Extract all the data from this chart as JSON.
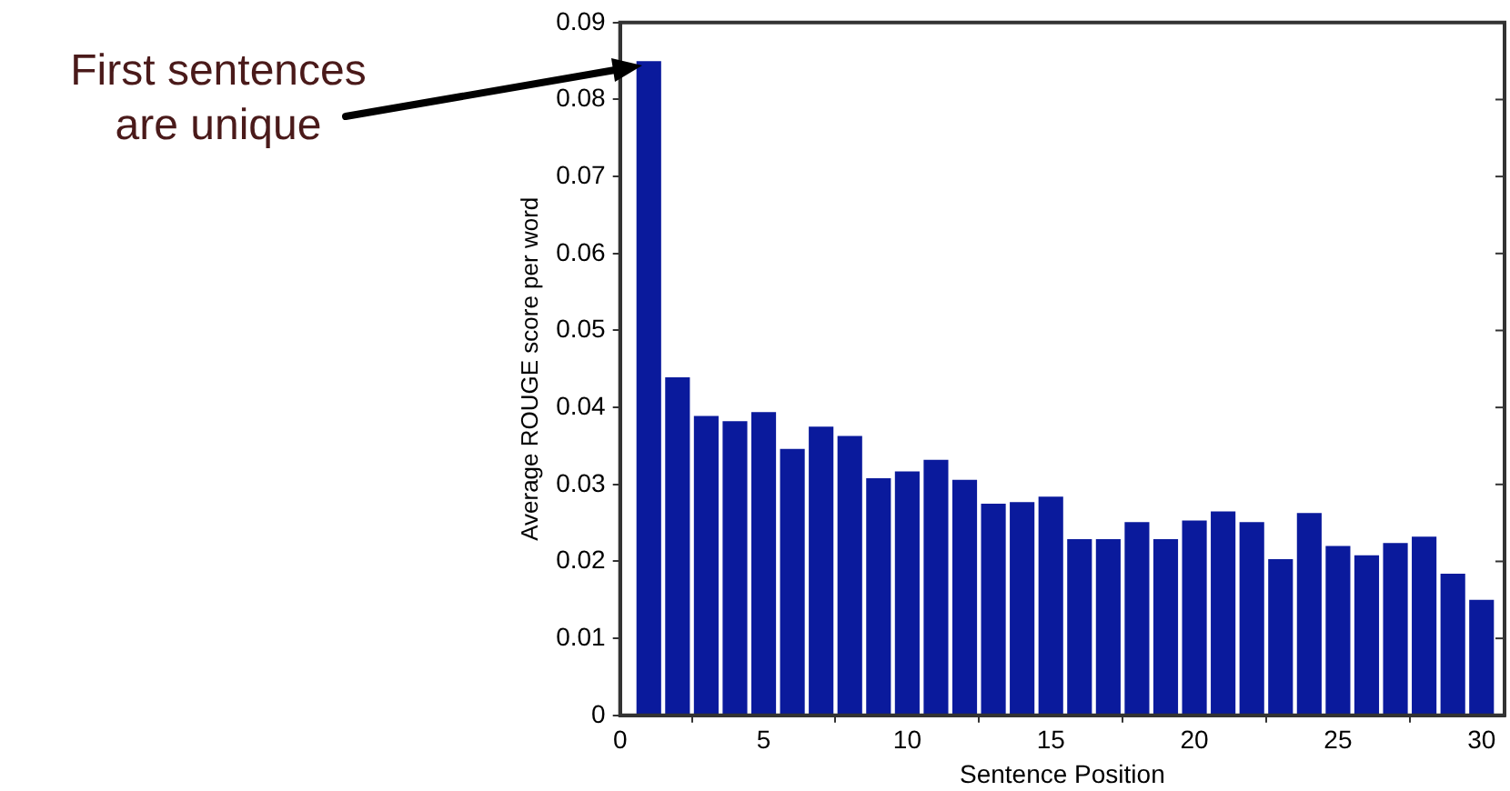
{
  "chart_data": {
    "type": "bar",
    "xlabel": "Sentence Position",
    "ylabel": "Average ROUGE score per word",
    "x": [
      1,
      2,
      3,
      4,
      5,
      6,
      7,
      8,
      9,
      10,
      11,
      12,
      13,
      14,
      15,
      16,
      17,
      18,
      19,
      20,
      21,
      22,
      23,
      24,
      25,
      26,
      27,
      28,
      29,
      30
    ],
    "values": [
      0.085,
      0.0439,
      0.0389,
      0.0382,
      0.0394,
      0.0346,
      0.0375,
      0.0363,
      0.0308,
      0.0317,
      0.0332,
      0.0306,
      0.0275,
      0.0277,
      0.0284,
      0.0229,
      0.0229,
      0.0251,
      0.0229,
      0.0253,
      0.0265,
      0.0251,
      0.0203,
      0.0263,
      0.022,
      0.0208,
      0.0224,
      0.0232,
      0.0184,
      0.015
    ],
    "color": "#0a1a9c",
    "xlim": [
      0,
      30.8
    ],
    "xticks": [
      0,
      5,
      10,
      15,
      20,
      25,
      30
    ],
    "ylim": [
      0,
      0.09
    ],
    "yticks": [
      0,
      0.01,
      0.02,
      0.03,
      0.04,
      0.05,
      0.06,
      0.07,
      0.08,
      0.09
    ],
    "grid": false,
    "legend": false,
    "annotations": [
      "First sentences are unique"
    ]
  }
}
